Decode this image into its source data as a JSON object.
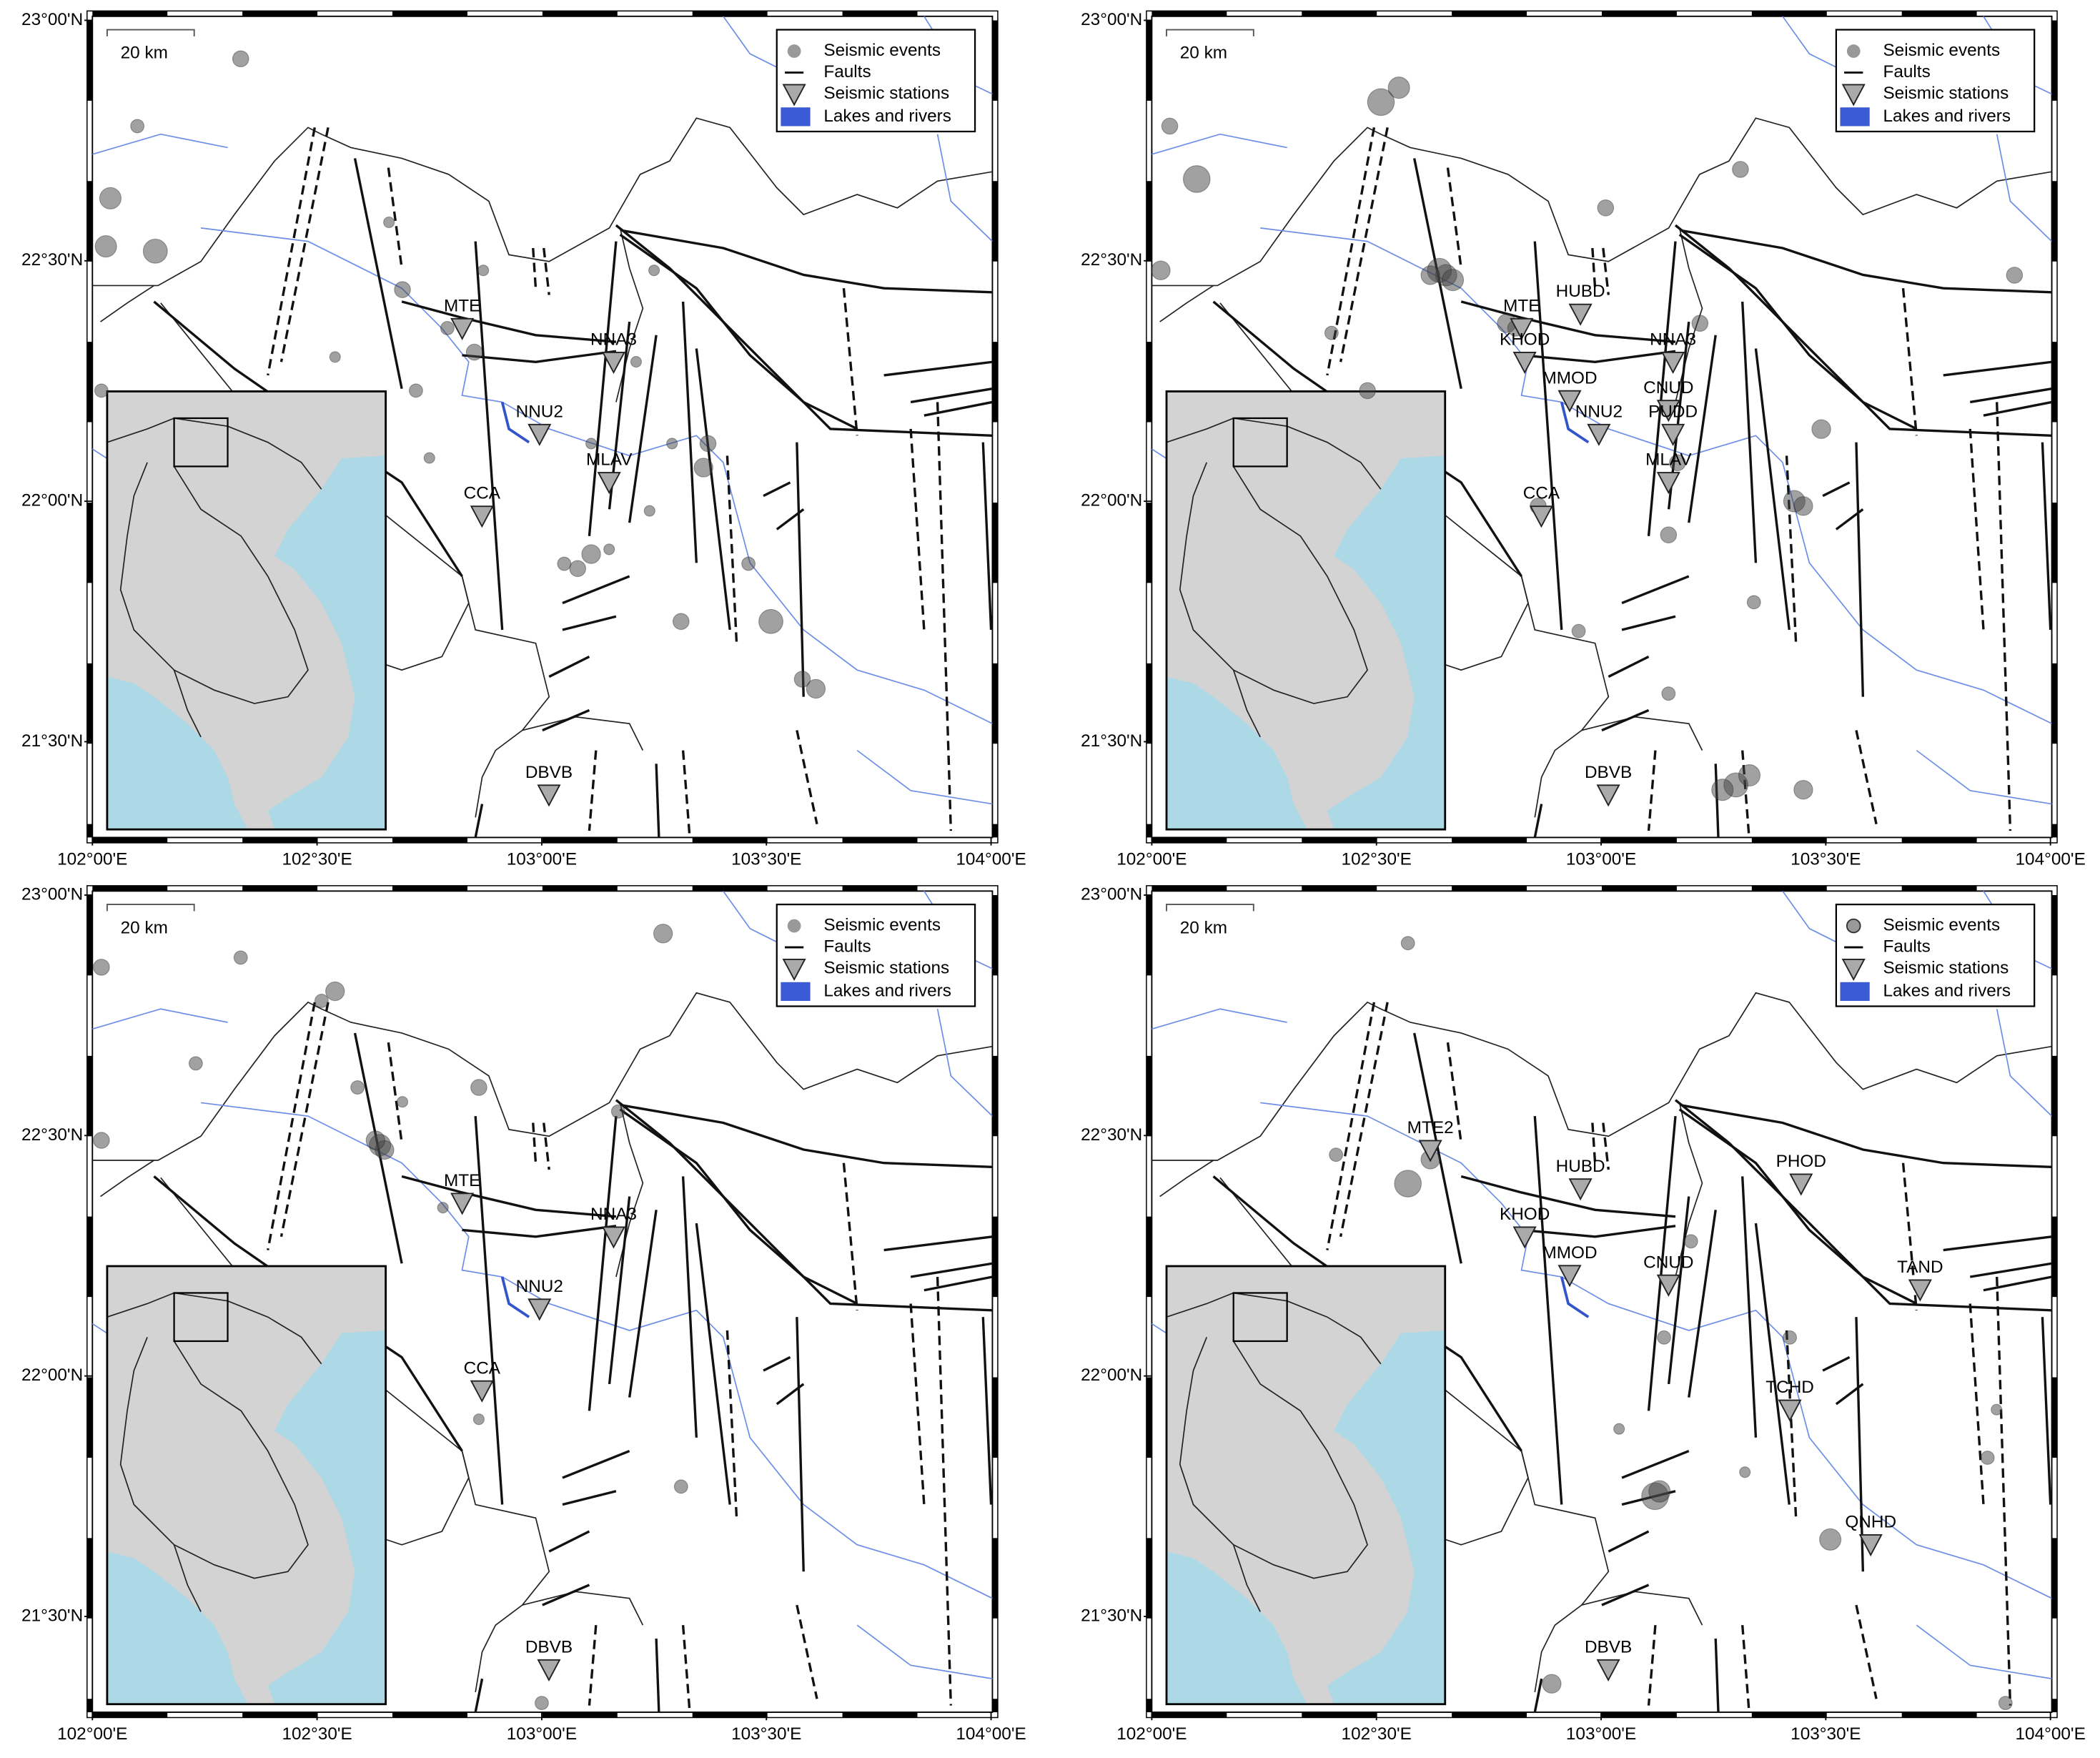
{
  "lon_ticks": [
    {
      "value": 102,
      "label": "102°00'E"
    },
    {
      "value": 102.5,
      "label": "102°30'E"
    },
    {
      "value": 103,
      "label": "103°00'E"
    },
    {
      "value": 103.5,
      "label": "103°30'E"
    },
    {
      "value": 104,
      "label": "104°00'E"
    }
  ],
  "lat_ticks": [
    {
      "value": 23,
      "label": "23°00'N"
    },
    {
      "value": 22.5,
      "label": "22°30'N"
    },
    {
      "value": 22,
      "label": "22°00'N"
    },
    {
      "value": 21.5,
      "label": "21°30'N"
    }
  ],
  "legend": [
    "Seismic events",
    "Faults",
    "Seismic stations",
    "Lakes and rivers"
  ],
  "scale_bar": "20 km",
  "panels": [
    {
      "stations": [
        {
          "name": "MTE",
          "lon": 102.823,
          "lat": 22.36
        },
        {
          "name": "NNA3",
          "lon": 103.16,
          "lat": 22.29
        },
        {
          "name": "NNU2",
          "lon": 102.995,
          "lat": 22.14
        },
        {
          "name": "MLAV",
          "lon": 103.15,
          "lat": 22.04
        },
        {
          "name": "CCA",
          "lon": 102.867,
          "lat": 21.97
        },
        {
          "name": "DBVB",
          "lon": 103.016,
          "lat": 21.39
        }
      ],
      "events": [
        [
          102.33,
          22.92,
          3
        ],
        [
          102.1,
          22.78,
          2.5
        ],
        [
          102.04,
          22.63,
          4
        ],
        [
          102.03,
          22.53,
          4
        ],
        [
          102.14,
          22.52,
          4.5
        ],
        [
          102.69,
          22.44,
          3
        ],
        [
          102.72,
          22.23,
          2.5
        ],
        [
          102.79,
          22.36,
          2.5
        ],
        [
          102.85,
          22.31,
          3
        ],
        [
          103.11,
          21.89,
          3.5
        ],
        [
          103.08,
          21.86,
          3
        ],
        [
          103.36,
          22.07,
          3.5
        ],
        [
          103.37,
          22.12,
          3
        ],
        [
          103.31,
          21.75,
          3
        ],
        [
          103.51,
          21.75,
          4.5
        ],
        [
          103.58,
          21.63,
          3
        ],
        [
          103.61,
          21.61,
          3.5
        ],
        [
          103.05,
          21.87,
          2.5
        ],
        [
          103.15,
          21.9,
          2
        ],
        [
          102.75,
          22.09,
          2
        ],
        [
          102.54,
          22.3,
          2
        ],
        [
          102.66,
          22.58,
          2
        ],
        [
          103.25,
          22.48,
          2
        ],
        [
          102.02,
          22.23,
          2.5
        ],
        [
          103.29,
          22.12,
          2
        ],
        [
          103.11,
          22.12,
          2
        ],
        [
          103.24,
          21.98,
          2
        ],
        [
          103.46,
          21.87,
          2.5
        ],
        [
          103.21,
          22.29,
          2
        ],
        [
          102.87,
          22.48,
          2
        ]
      ]
    },
    {
      "stations": [
        {
          "name": "MTE",
          "lon": 102.823,
          "lat": 22.36
        },
        {
          "name": "HUBD",
          "lon": 102.954,
          "lat": 22.39
        },
        {
          "name": "KHOD",
          "lon": 102.83,
          "lat": 22.29
        },
        {
          "name": "MMOD",
          "lon": 102.93,
          "lat": 22.21
        },
        {
          "name": "NNU2",
          "lon": 102.995,
          "lat": 22.14
        },
        {
          "name": "NNA3",
          "lon": 103.16,
          "lat": 22.29
        },
        {
          "name": "CNUD",
          "lon": 103.15,
          "lat": 22.19
        },
        {
          "name": "PUDD",
          "lon": 103.16,
          "lat": 22.14
        },
        {
          "name": "MLAV",
          "lon": 103.15,
          "lat": 22.04
        },
        {
          "name": "CCA",
          "lon": 102.867,
          "lat": 21.97
        },
        {
          "name": "DBVB",
          "lon": 103.016,
          "lat": 21.39
        }
      ],
      "events": [
        [
          102.655,
          22.47,
          4
        ],
        [
          102.64,
          22.48,
          4.5
        ],
        [
          102.67,
          22.46,
          4
        ],
        [
          102.62,
          22.47,
          3.5
        ],
        [
          102.79,
          22.37,
          3.5
        ],
        [
          102.81,
          22.36,
          3
        ],
        [
          103.43,
          22.0,
          4
        ],
        [
          103.45,
          21.99,
          3.5
        ],
        [
          103.3,
          21.41,
          4.5
        ],
        [
          103.33,
          21.43,
          4
        ],
        [
          103.27,
          21.4,
          4
        ],
        [
          103.45,
          21.4,
          3.5
        ],
        [
          102.51,
          22.83,
          5
        ],
        [
          102.55,
          22.86,
          4
        ],
        [
          102.1,
          22.67,
          5
        ],
        [
          103.01,
          22.61,
          3
        ],
        [
          103.15,
          21.93,
          3
        ],
        [
          102.86,
          21.99,
          3
        ],
        [
          103.17,
          22.08,
          3
        ],
        [
          103.49,
          22.15,
          3.5
        ],
        [
          103.92,
          22.47,
          3
        ],
        [
          102.48,
          22.23,
          3
        ],
        [
          103.31,
          22.69,
          3
        ],
        [
          103.22,
          22.37,
          3
        ],
        [
          102.95,
          21.73,
          2.5
        ],
        [
          103.34,
          21.79,
          2.5
        ],
        [
          103.15,
          21.6,
          2.5
        ],
        [
          102.02,
          22.48,
          3.5
        ],
        [
          102.04,
          22.78,
          3
        ],
        [
          102.4,
          22.35,
          2.5
        ]
      ]
    },
    {
      "stations": [
        {
          "name": "MTE",
          "lon": 102.823,
          "lat": 22.36
        },
        {
          "name": "NNA3",
          "lon": 103.16,
          "lat": 22.29
        },
        {
          "name": "NNU2",
          "lon": 102.995,
          "lat": 22.14
        },
        {
          "name": "CCA",
          "lon": 102.867,
          "lat": 21.97
        },
        {
          "name": "DBVB",
          "lon": 103.016,
          "lat": 21.39
        }
      ],
      "events": [
        [
          102.64,
          22.48,
          4
        ],
        [
          102.65,
          22.47,
          3.5
        ],
        [
          102.63,
          22.49,
          3.5
        ],
        [
          102.33,
          22.87,
          2.5
        ],
        [
          102.02,
          22.85,
          3
        ],
        [
          102.54,
          22.8,
          3.5
        ],
        [
          103.27,
          22.92,
          3.5
        ],
        [
          102.59,
          22.6,
          2.5
        ],
        [
          102.86,
          22.6,
          3
        ],
        [
          103.17,
          22.55,
          2.5
        ],
        [
          103.31,
          21.77,
          2.5
        ],
        [
          102.86,
          21.91,
          2
        ],
        [
          102.23,
          22.65,
          2.5
        ],
        [
          102.51,
          22.78,
          2.5
        ],
        [
          102.69,
          22.57,
          2
        ],
        [
          102.78,
          22.35,
          2
        ],
        [
          102.02,
          22.49,
          3
        ],
        [
          103.0,
          21.32,
          2.5
        ]
      ]
    },
    {
      "stations": [
        {
          "name": "MTE2",
          "lon": 102.62,
          "lat": 22.47
        },
        {
          "name": "HUBD",
          "lon": 102.954,
          "lat": 22.39
        },
        {
          "name": "KHOD",
          "lon": 102.83,
          "lat": 22.29
        },
        {
          "name": "MMOD",
          "lon": 102.93,
          "lat": 22.21
        },
        {
          "name": "CNUD",
          "lon": 103.15,
          "lat": 22.19
        },
        {
          "name": "PHOD",
          "lon": 103.445,
          "lat": 22.4
        },
        {
          "name": "TAND",
          "lon": 103.71,
          "lat": 22.18
        },
        {
          "name": "TCHD",
          "lon": 103.42,
          "lat": 21.93
        },
        {
          "name": "QNHD",
          "lon": 103.6,
          "lat": 21.65
        },
        {
          "name": "DBVB",
          "lon": 103.016,
          "lat": 21.39
        }
      ],
      "events": [
        [
          102.62,
          22.45,
          3.5
        ],
        [
          102.57,
          22.4,
          5
        ],
        [
          103.12,
          21.75,
          5
        ],
        [
          103.13,
          21.76,
          4
        ],
        [
          103.51,
          21.66,
          4
        ],
        [
          103.14,
          22.08,
          2.5
        ],
        [
          103.42,
          22.08,
          2.5
        ],
        [
          103.9,
          21.32,
          2.5
        ],
        [
          102.89,
          21.36,
          3.5
        ],
        [
          102.57,
          22.9,
          2.5
        ],
        [
          103.86,
          21.83,
          2.5
        ],
        [
          103.2,
          22.28,
          2.5
        ],
        [
          103.32,
          21.8,
          2
        ],
        [
          102.41,
          22.46,
          2.5
        ],
        [
          103.04,
          21.89,
          2
        ],
        [
          103.88,
          21.93,
          2
        ]
      ]
    }
  ]
}
